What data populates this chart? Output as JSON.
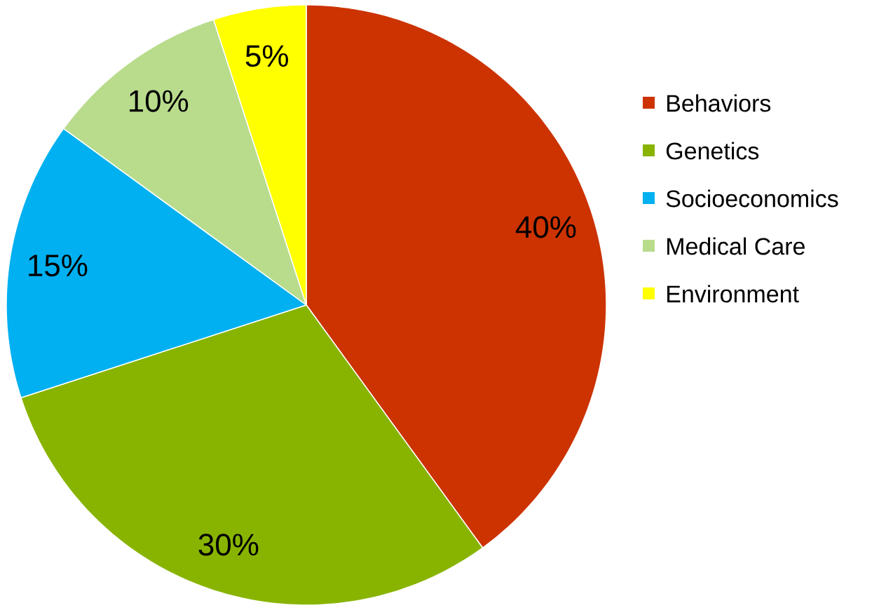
{
  "chart_data": {
    "type": "pie",
    "categories": [
      "Behaviors",
      "Genetics",
      "Socioeconomics",
      "Medical Care",
      "Environment"
    ],
    "values": [
      40,
      30,
      15,
      10,
      5
    ],
    "colors": [
      "#cc3300",
      "#88b400",
      "#00b0f0",
      "#b8dc8c",
      "#ffff00"
    ],
    "value_labels": [
      "40%",
      "30%",
      "15%",
      "10%",
      "5%"
    ],
    "legend": "right"
  }
}
